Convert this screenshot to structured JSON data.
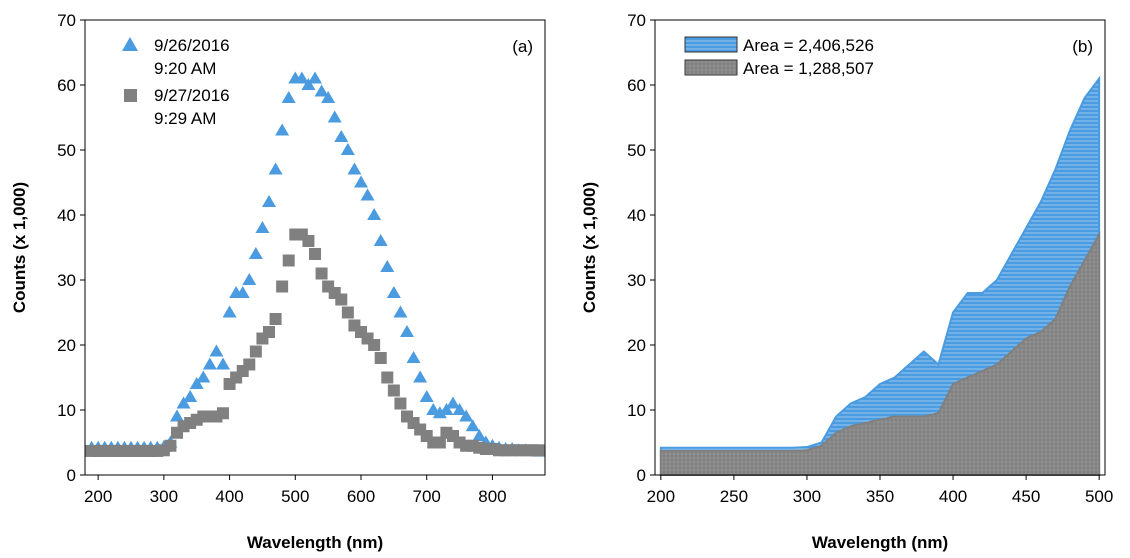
{
  "chart_data": [
    {
      "type": "scatter",
      "annotation": "(a)",
      "x_label": "Wavelength (nm)",
      "y_label": "Counts (x 1,000)",
      "xlim": [
        180,
        880
      ],
      "xticks": [
        200,
        300,
        400,
        500,
        600,
        700,
        800
      ],
      "ylim": [
        0,
        70
      ],
      "yticks": [
        0,
        10,
        20,
        30,
        40,
        50,
        60,
        70
      ],
      "x": [
        190,
        200,
        210,
        220,
        230,
        240,
        250,
        260,
        270,
        280,
        290,
        300,
        310,
        320,
        330,
        340,
        350,
        360,
        370,
        380,
        390,
        400,
        410,
        420,
        430,
        440,
        450,
        460,
        470,
        480,
        490,
        500,
        510,
        520,
        530,
        540,
        550,
        560,
        570,
        580,
        590,
        600,
        610,
        620,
        630,
        640,
        650,
        660,
        670,
        680,
        690,
        700,
        710,
        720,
        730,
        740,
        750,
        760,
        770,
        780,
        790,
        800,
        810,
        820,
        830,
        840,
        850,
        860,
        870
      ],
      "series": [
        {
          "name": "9/26/2016\n9:20 AM",
          "color": "#4a9be0",
          "marker": "triangle",
          "values": [
            4.2,
            4.2,
            4.2,
            4.2,
            4.2,
            4.2,
            4.2,
            4.2,
            4.2,
            4.2,
            4.2,
            4.3,
            5,
            9,
            11,
            12,
            14,
            15,
            17,
            19,
            17,
            25,
            28,
            28,
            30,
            34,
            38,
            42,
            47,
            53,
            58,
            61,
            61,
            60,
            61,
            59,
            58,
            55,
            52,
            50,
            47,
            45,
            43,
            40,
            36,
            32,
            28,
            25,
            22,
            18,
            15,
            12,
            10,
            9.5,
            10,
            11,
            10,
            9,
            7.5,
            6,
            5,
            4.5,
            4.2,
            4,
            4,
            3.8,
            3.8,
            3.7,
            3.6
          ]
        },
        {
          "name": "9/27/2016\n9:29 AM",
          "color": "#808080",
          "marker": "square",
          "values": [
            3.7,
            3.7,
            3.7,
            3.7,
            3.7,
            3.7,
            3.7,
            3.7,
            3.7,
            3.7,
            3.7,
            3.8,
            4.5,
            6.5,
            7.5,
            8,
            8.5,
            9,
            9,
            9,
            9.5,
            14,
            15,
            16,
            17,
            19,
            21,
            22,
            24,
            29,
            33,
            37,
            37,
            36,
            34,
            31,
            29,
            28,
            27,
            25,
            23,
            22,
            21,
            20,
            18,
            15,
            13,
            11,
            9,
            8,
            7,
            6,
            5,
            5,
            6.5,
            6,
            5,
            4.5,
            4.5,
            4.2,
            4,
            4,
            3.8,
            3.8,
            3.8,
            3.8,
            3.8,
            3.8,
            3.8
          ]
        }
      ]
    },
    {
      "type": "area",
      "annotation": "(b)",
      "x_label": "Wavelength (nm)",
      "y_label": "Counts (x 1,000)",
      "xlim": [
        196,
        504
      ],
      "xticks": [
        200,
        250,
        300,
        350,
        400,
        450,
        500
      ],
      "ylim": [
        0,
        70
      ],
      "yticks": [
        0,
        10,
        20,
        30,
        40,
        50,
        60,
        70
      ],
      "x": [
        200,
        210,
        220,
        230,
        240,
        250,
        260,
        270,
        280,
        290,
        300,
        310,
        320,
        330,
        340,
        350,
        360,
        370,
        380,
        390,
        400,
        410,
        420,
        430,
        440,
        450,
        460,
        470,
        480,
        490,
        500
      ],
      "series": [
        {
          "name": "Area = 2,406,526",
          "color": "#4a9be0",
          "values": [
            4.2,
            4.2,
            4.2,
            4.2,
            4.2,
            4.2,
            4.2,
            4.2,
            4.2,
            4.2,
            4.3,
            5,
            9,
            11,
            12,
            14,
            15,
            17,
            19,
            17,
            25,
            28,
            28,
            30,
            34,
            38,
            42,
            47,
            53,
            58,
            61
          ]
        },
        {
          "name": "Area = 1,288,507",
          "color": "#808080",
          "values": [
            3.7,
            3.7,
            3.7,
            3.7,
            3.7,
            3.7,
            3.7,
            3.7,
            3.7,
            3.7,
            3.8,
            4.5,
            6.5,
            7.5,
            8,
            8.5,
            9,
            9,
            9,
            9.5,
            14,
            15,
            16,
            17,
            19,
            21,
            22,
            24,
            29,
            33,
            37
          ]
        }
      ]
    }
  ]
}
